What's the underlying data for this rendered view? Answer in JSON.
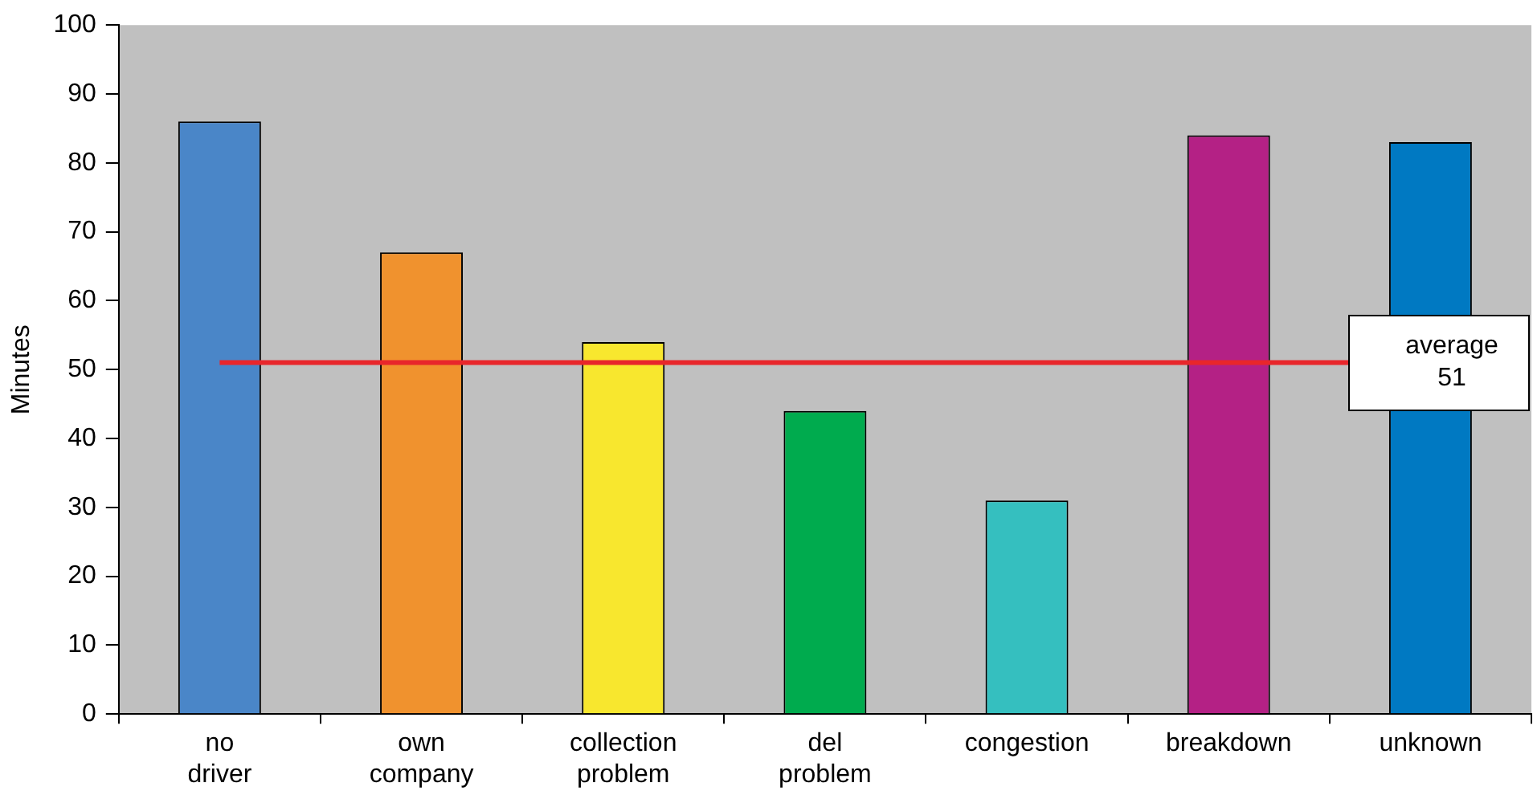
{
  "chart_data": {
    "type": "bar",
    "ylabel": "Minutes",
    "categories": [
      "no driver",
      "own company",
      "collection problem",
      "del problem",
      "congestion",
      "breakdown",
      "unknown"
    ],
    "values": [
      86,
      67,
      54,
      44,
      31,
      84,
      83
    ],
    "colors": [
      "#4a86c8",
      "#f0922e",
      "#f8e72e",
      "#00ab4e",
      "#35bfbf",
      "#b42185",
      "#0079c2"
    ],
    "ylim": [
      0,
      100
    ],
    "yticks": [
      0,
      10,
      20,
      30,
      40,
      50,
      60,
      70,
      80,
      90,
      100
    ],
    "grid": false,
    "legend": false,
    "ref_lines": [
      {
        "axis": "y",
        "value": 51,
        "label": "average 51",
        "color": "#e8262b"
      }
    ]
  }
}
